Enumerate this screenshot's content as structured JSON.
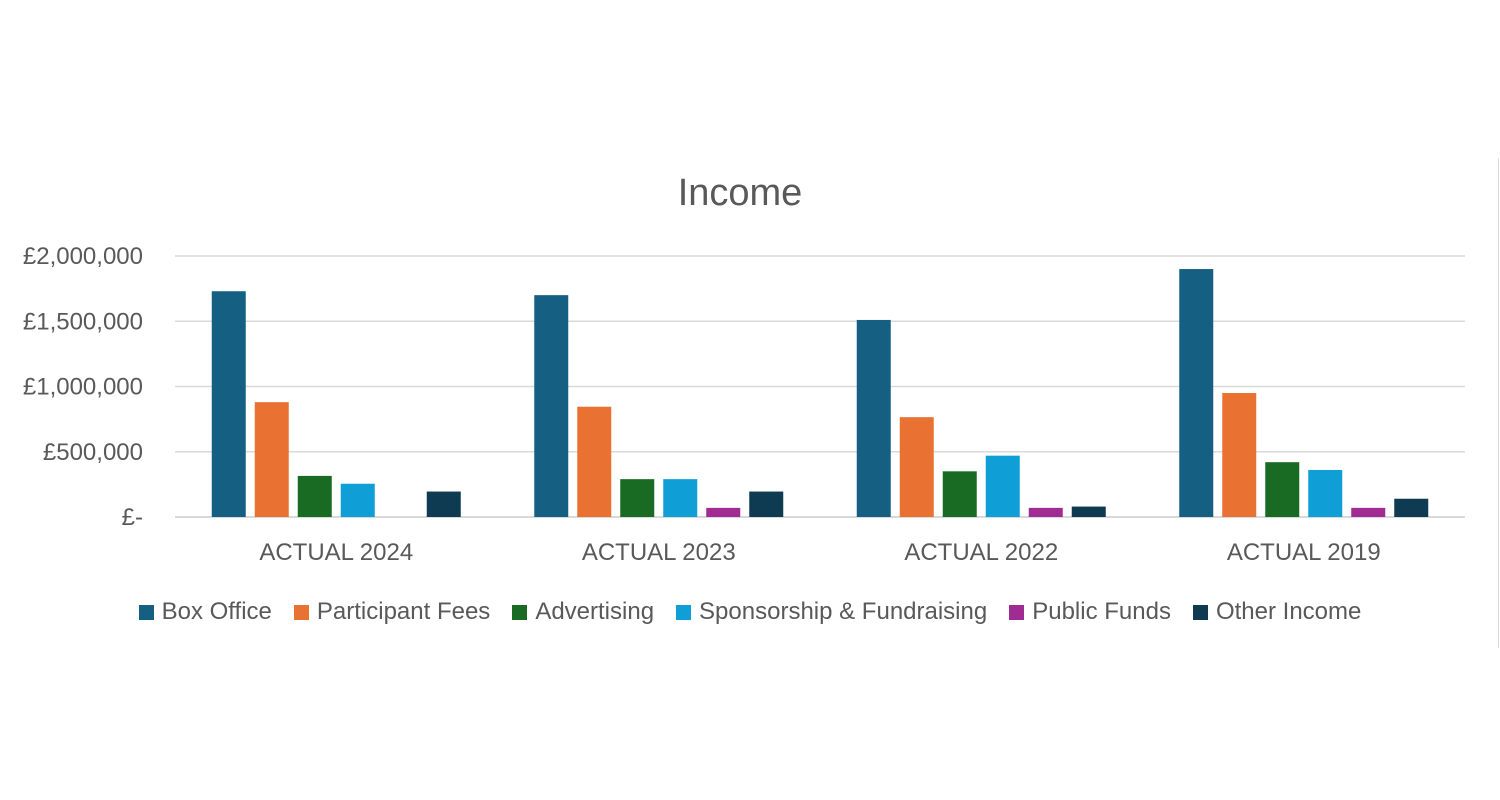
{
  "chart_data": {
    "type": "bar",
    "title": "Income",
    "categories": [
      "ACTUAL 2024",
      "ACTUAL 2023",
      "ACTUAL 2022",
      "ACTUAL 2019"
    ],
    "series": [
      {
        "name": "Box Office",
        "color": "#156082",
        "values": [
          1730000,
          1700000,
          1510000,
          1900000
        ]
      },
      {
        "name": "Participant Fees",
        "color": "#e97132",
        "values": [
          880000,
          845000,
          765000,
          950000
        ]
      },
      {
        "name": "Advertising",
        "color": "#196b24",
        "values": [
          315000,
          290000,
          350000,
          420000
        ]
      },
      {
        "name": "Sponsorship & Fundraising",
        "color": "#0f9ed5",
        "values": [
          255000,
          290000,
          470000,
          360000
        ]
      },
      {
        "name": "Public Funds",
        "color": "#a02b93",
        "values": [
          0,
          70000,
          70000,
          70000
        ]
      },
      {
        "name": "Other Income",
        "color": "#0e3a52",
        "values": [
          195000,
          195000,
          80000,
          140000
        ]
      }
    ],
    "ylim": [
      0,
      2000000
    ],
    "yticks": [
      0,
      500000,
      1000000,
      1500000,
      2000000
    ],
    "ytick_labels": [
      "£-",
      "£500,000",
      "£1,000,000",
      "£1,500,000",
      "£2,000,000"
    ],
    "grid": true,
    "legend_position": "bottom"
  }
}
